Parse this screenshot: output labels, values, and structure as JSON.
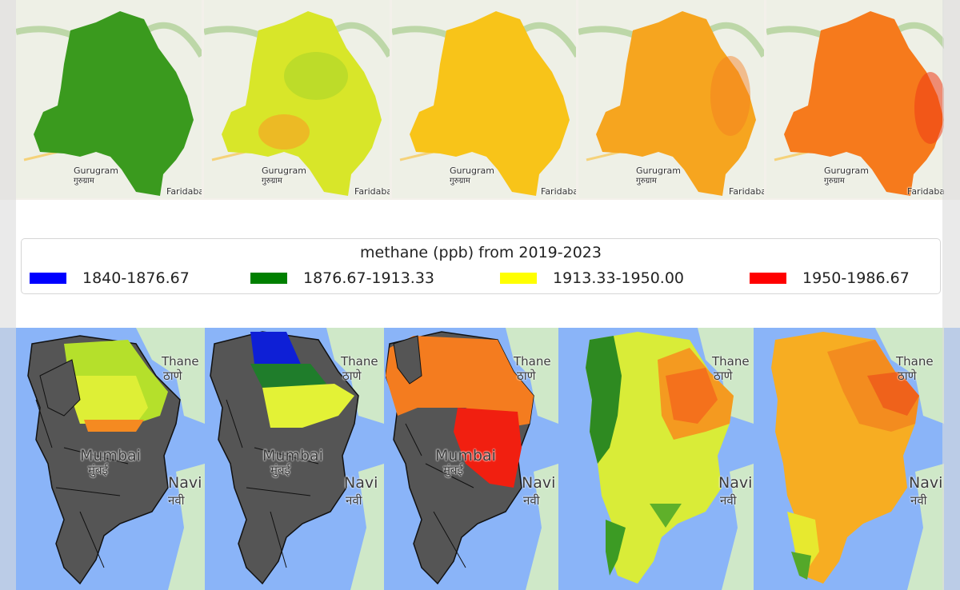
{
  "legend": {
    "title": "methane (ppb) from 2019-2023",
    "items": [
      {
        "label": "1840-1876.67",
        "color": "#0000ff"
      },
      {
        "label": "1876.67-1913.33",
        "color": "#008000"
      },
      {
        "label": "1913.33-1950.00",
        "color": "#ffff00"
      },
      {
        "label": "1950-1986.67",
        "color": "#ff0000"
      }
    ]
  },
  "delhi_labels": {
    "gurugram": "Gurugram",
    "gurugram_hi": "गुरुग्राम",
    "faridabad": "Faridaba"
  },
  "delhi_fill_colors": [
    "#3a9a1e",
    "#d8e629",
    "#f8c419",
    "#f6a51f",
    "#f67a1c"
  ],
  "mumbai_labels": {
    "thane": "Thane",
    "thane_hi": "ठाणे",
    "mumbai": "Mumbai",
    "mumbai_hi": "मुंबई",
    "navi": "Navi",
    "navi_hi": "नवी"
  }
}
